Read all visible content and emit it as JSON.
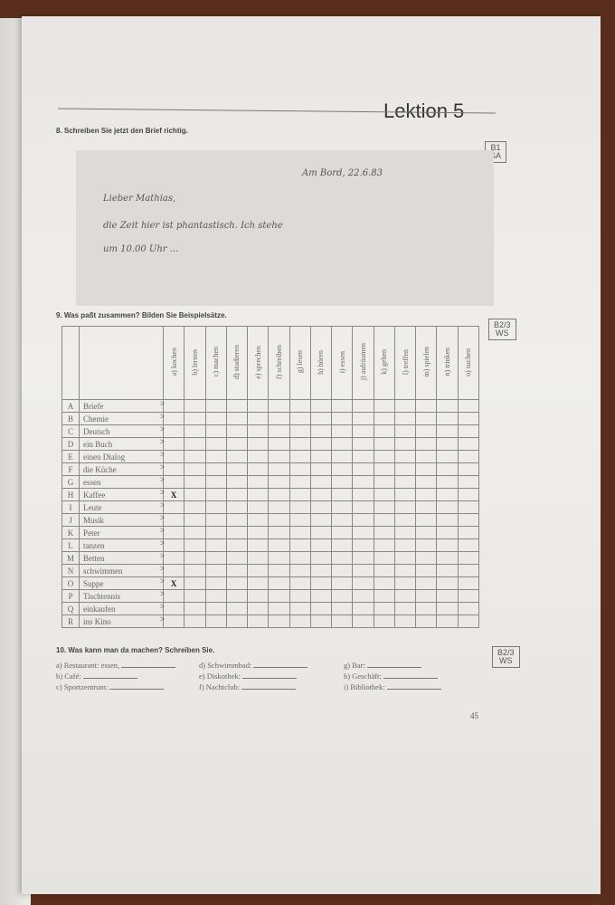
{
  "header": {
    "title": "Lektion 5"
  },
  "task8": {
    "title": "8. Schreiben Sie jetzt den Brief richtig.",
    "badge": [
      "B1",
      "SA"
    ],
    "letter": {
      "place_date": "Am Bord, 22.6.83",
      "salutation": "Lieber Mathias,",
      "line1": "die Zeit hier ist phantastisch. Ich stehe",
      "line2": "um 10.00 Uhr ..."
    }
  },
  "task9": {
    "title": "9. Was paßt zusammen? Bilden Sie Beispielsätze.",
    "badge": [
      "B2/3",
      "WS"
    ],
    "columns": [
      "a) kochen",
      "b) lernen",
      "c) machen",
      "d) studieren",
      "e) sprechen",
      "f) schreiben",
      "g) lesen",
      "h) hören",
      "i) essen",
      "j) aufräumen",
      "k) gehen",
      "l) treffen",
      "m) spielen",
      "n) trinken",
      "o) suchen"
    ],
    "rows": [
      [
        "A",
        "Briefe"
      ],
      [
        "B",
        "Chemie"
      ],
      [
        "C",
        "Deutsch"
      ],
      [
        "D",
        "ein Buch"
      ],
      [
        "E",
        "einen Dialog"
      ],
      [
        "F",
        "die Küche"
      ],
      [
        "G",
        "essen"
      ],
      [
        "H",
        "Kaffee"
      ],
      [
        "I",
        "Leute"
      ],
      [
        "J",
        "Musik"
      ],
      [
        "K",
        "Peter"
      ],
      [
        "L",
        "tanzen"
      ],
      [
        "M",
        "Betten"
      ],
      [
        "N",
        "schwimmen"
      ],
      [
        "O",
        "Suppe"
      ],
      [
        "P",
        "Tischtennis"
      ],
      [
        "Q",
        "einkaufen"
      ],
      [
        "R",
        "ins Kino"
      ]
    ],
    "marks": [
      {
        "row": "H",
        "column": "a) kochen",
        "value": "X"
      },
      {
        "row": "O",
        "column": "a) kochen",
        "value": "X"
      }
    ]
  },
  "task10": {
    "title": "10. Was kann man da machen? Schreiben Sie.",
    "badge": [
      "B2/3",
      "WS"
    ],
    "items": [
      "a) Restaurant: essen,",
      "b) Café:",
      "c) Sportzentrum:",
      "d) Schwimmbad:",
      "e) Diskothek:",
      "f) Nachtclub:",
      "g) Bar:",
      "h) Geschäft:",
      "i) Bibliothek:"
    ]
  },
  "page_number": "45"
}
